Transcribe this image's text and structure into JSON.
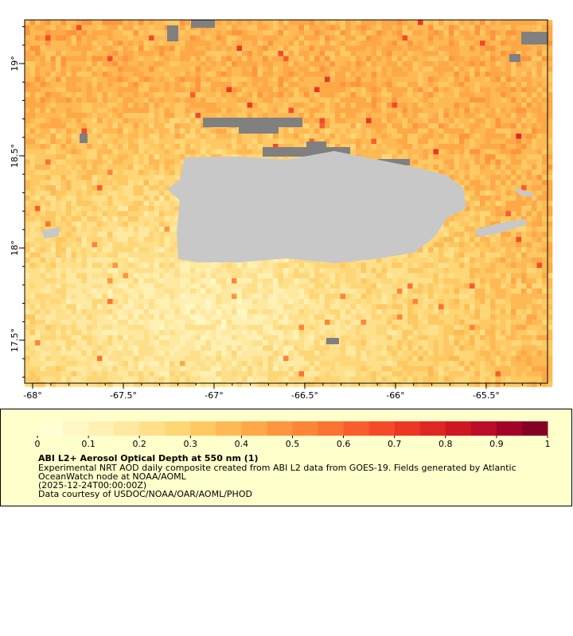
{
  "map": {
    "xlim": [
      -68.044,
      -65.162
    ],
    "ylim": [
      17.267,
      19.237
    ],
    "xticks": [
      {
        "value": -68,
        "label": "-68°"
      },
      {
        "value": -67.5,
        "label": "-67.5°"
      },
      {
        "value": -67,
        "label": "-67°"
      },
      {
        "value": -66.5,
        "label": "-66.5°"
      },
      {
        "value": -66,
        "label": "-66°"
      },
      {
        "value": -65.5,
        "label": "-65.5°"
      }
    ],
    "yticks": [
      {
        "value": 19,
        "label": "19°"
      },
      {
        "value": 18.5,
        "label": "18.5°"
      },
      {
        "value": 18,
        "label": "18°"
      },
      {
        "value": 17.5,
        "label": "17.5°"
      }
    ]
  },
  "colorbar": {
    "lim": [
      0,
      1
    ],
    "ticks": [
      0,
      0.1,
      0.2,
      0.3,
      0.4,
      0.5,
      0.6,
      0.7,
      0.8,
      0.9,
      1
    ],
    "colors": [
      "#ffffd4",
      "#fff8c4",
      "#fff1b3",
      "#ffe9a0",
      "#fee08b",
      "#fed676",
      "#fec862",
      "#feb954",
      "#fea848",
      "#fd963f",
      "#fd8538",
      "#fc7232",
      "#fa5d2d",
      "#f44a29",
      "#eb3724",
      "#df2622",
      "#cf1723",
      "#bb0b26",
      "#a30327",
      "#850025"
    ]
  },
  "caption": {
    "title": "ABI L2+ Aerosol Optical Depth at 550 nm (1)",
    "lines": [
      "Experimental NRT AOD daily composite created from ABI L2 data from GOES-19. Fields generated by Atlantic",
      "OceanWatch node at NOAA/AOML",
      "(2025-12-24T00:00:00Z)",
      "Data courtesy of USDOC/NOAA/OAR/AOML/PHOD"
    ]
  }
}
